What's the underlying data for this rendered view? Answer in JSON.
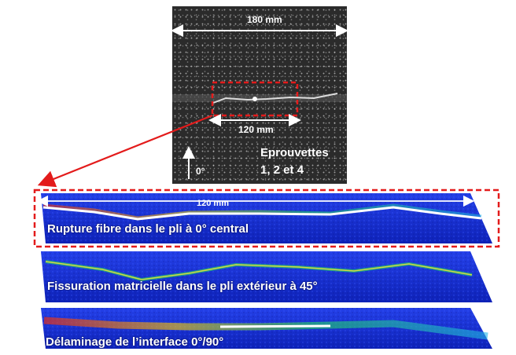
{
  "photo": {
    "width_label": "180 mm",
    "zoom_width_label": "120 mm",
    "specimen_title": "Eprouvettes",
    "specimen_ids": "1, 2 et 4",
    "orientation_label": "0°"
  },
  "panels": [
    {
      "width_label": "120 mm",
      "caption": "Rupture fibre dans le pli à 0° central"
    },
    {
      "caption": "Fissuration matricielle dans le pli extérieur à 45°"
    },
    {
      "caption": "Délaminage de l’interface 0°/90°"
    }
  ],
  "colors": {
    "highlight": "#e31b1b",
    "scan_blue": "#1a2fd6",
    "scan_deep": "#0b1a9e"
  }
}
